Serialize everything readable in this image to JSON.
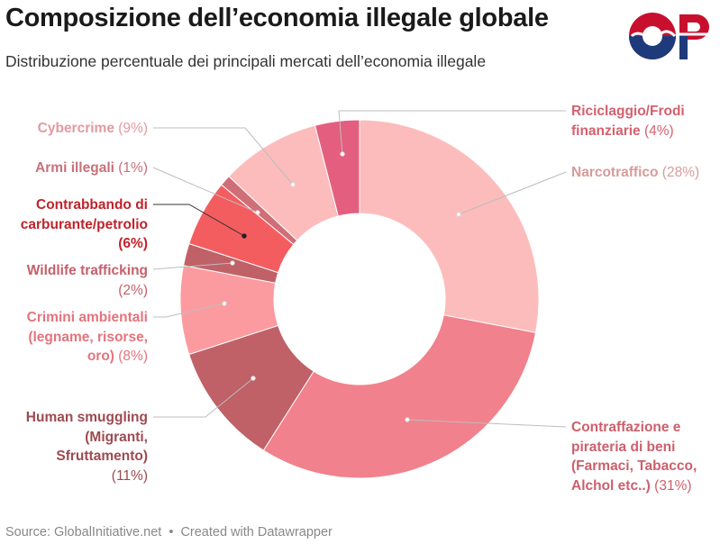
{
  "header": {
    "title": "Composizione dell’economia illegale globale",
    "subtitle": "Distribuzione percentuale dei principali mercati dell’economia illegale",
    "logo_text": "OP"
  },
  "footer": {
    "source": "Source: GlobalInitiative.net",
    "separator": "•",
    "credit": "Created with Datawrapper"
  },
  "colors": {
    "narcotraffico": "#fdbcbc",
    "contraffazione": "#f1818c",
    "human": "#c06167",
    "ambientali": "#fc9b9f",
    "wildlife": "#c06167",
    "carburante": "#f45d60",
    "armi": "#d06e78",
    "cybercrime": "#fdbcbc",
    "riciclaggio": "#e45f7f"
  },
  "chart_data": {
    "type": "pie",
    "donut": true,
    "title": "Composizione dell’economia illegale globale",
    "subtitle": "Distribuzione percentuale dei principali mercati dell’economia illegale",
    "unit": "%",
    "slices": [
      {
        "key": "narcotraffico",
        "lines": [
          "Narcotraffico"
        ],
        "pct": "(28%)",
        "value": 28
      },
      {
        "key": "contraffazione",
        "lines": [
          "Contraffazione e",
          "pirateria di beni",
          "(Farmaci, Tabacco,",
          "Alchol etc..)"
        ],
        "pct": "(31%)",
        "value": 31
      },
      {
        "key": "human",
        "lines": [
          "Human smuggling",
          "(Migranti,",
          "Sfruttamento)"
        ],
        "pct": "(11%)",
        "value": 11
      },
      {
        "key": "ambientali",
        "lines": [
          "Crimini ambientali",
          "(legname, risorse,",
          "oro)"
        ],
        "pct": "(8%)",
        "value": 8
      },
      {
        "key": "wildlife",
        "lines": [
          "Wildlife trafficking"
        ],
        "pct": "(2%)",
        "value": 2
      },
      {
        "key": "carburante",
        "lines": [
          "Contrabbando di",
          "carburante/petrolio"
        ],
        "pct": "(6%)",
        "value": 6
      },
      {
        "key": "armi",
        "lines": [
          "Armi illegali"
        ],
        "pct": "(1%)",
        "value": 1
      },
      {
        "key": "cybercrime",
        "lines": [
          "Cybercrime"
        ],
        "pct": "(9%)",
        "value": 9
      },
      {
        "key": "riciclaggio",
        "lines": [
          "Riciclaggio/Frodi",
          "finanziarie"
        ],
        "pct": "(4%)",
        "value": 4
      }
    ]
  }
}
